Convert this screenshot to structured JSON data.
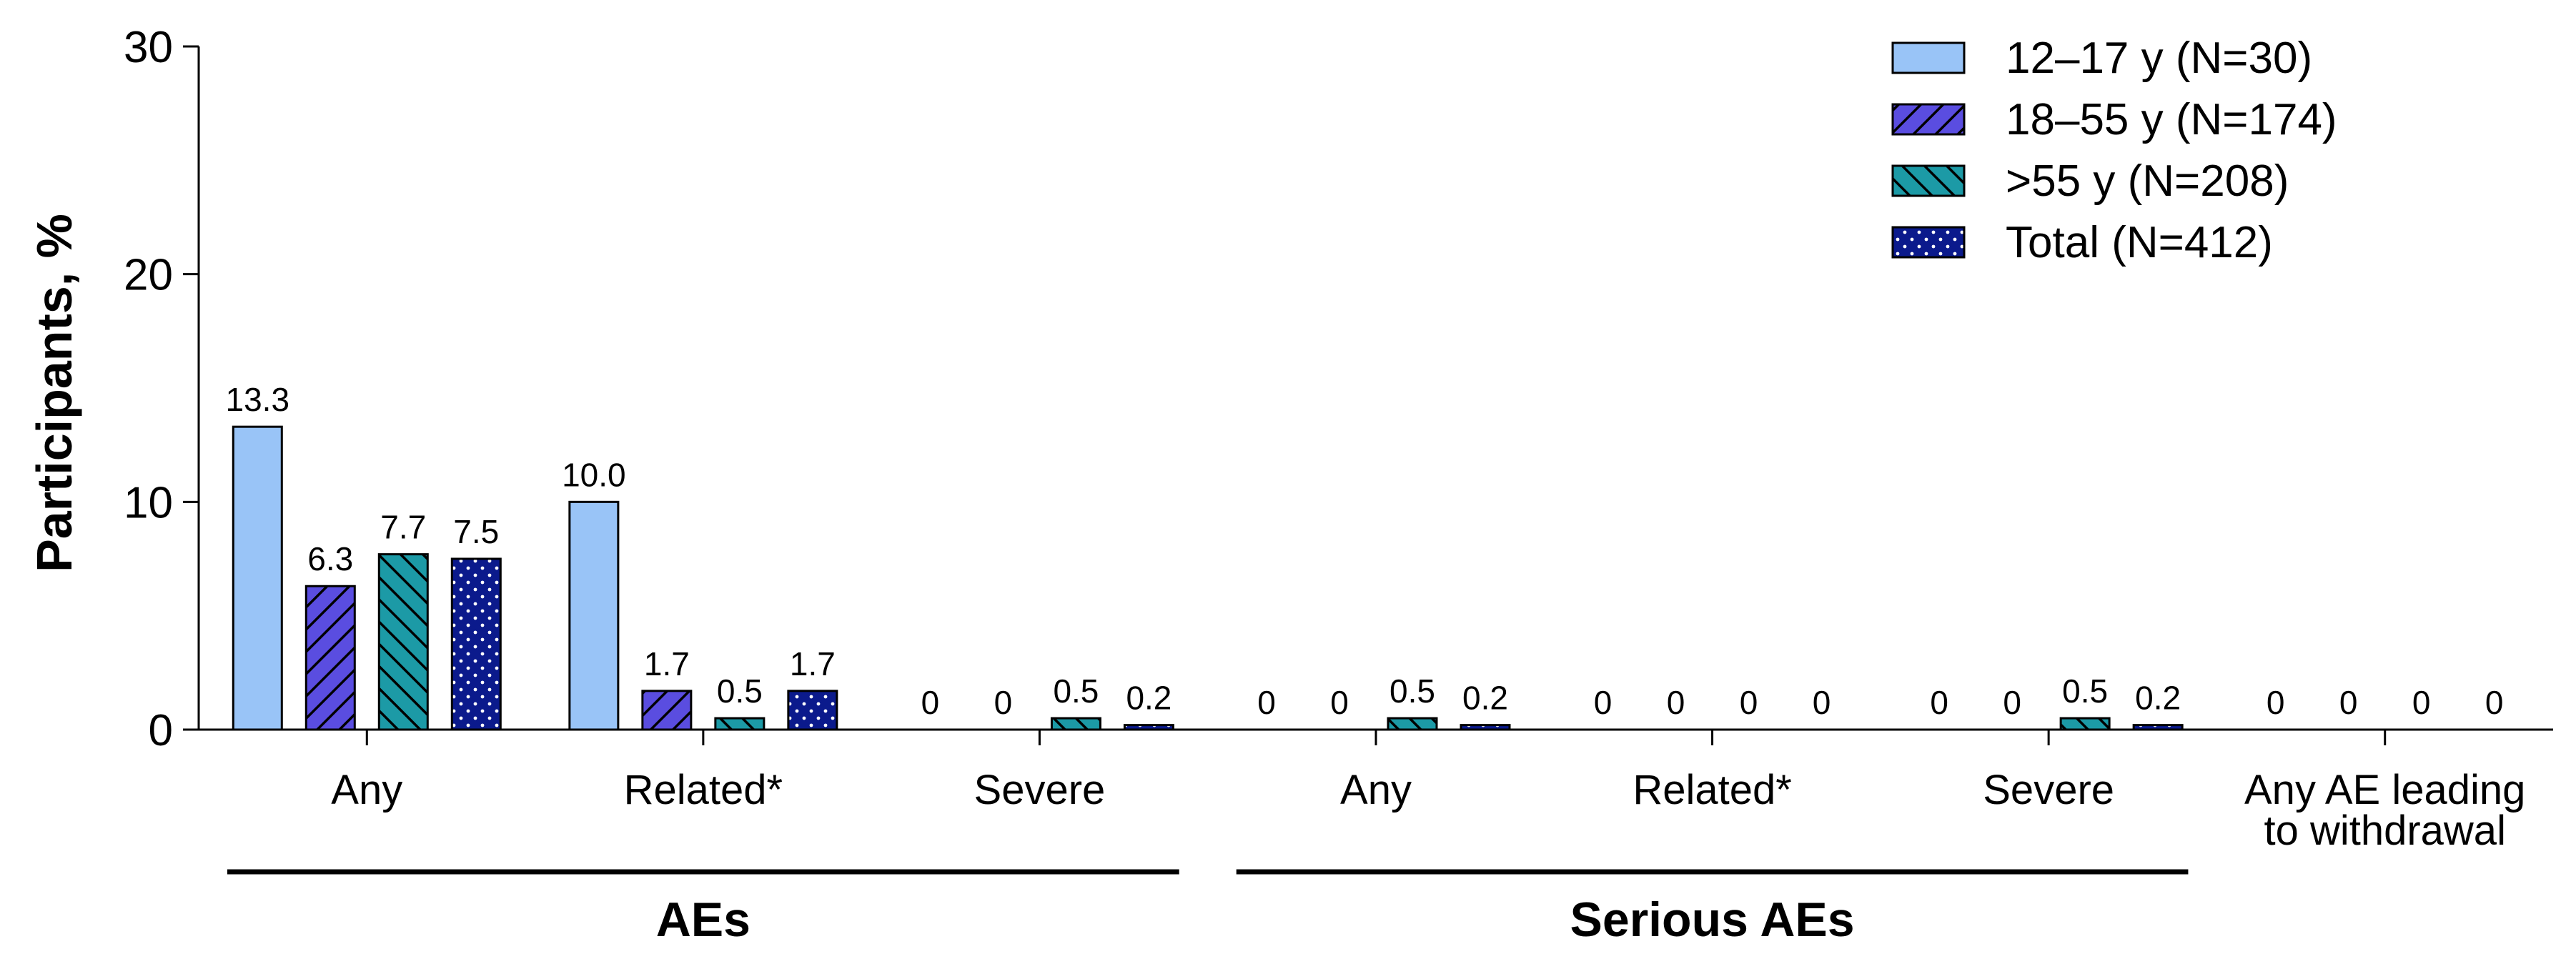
{
  "chart_data": {
    "type": "bar",
    "ylabel": "Participants, %",
    "ylim": [
      0,
      30
    ],
    "yticks": [
      0,
      10,
      20,
      30
    ],
    "categories": [
      "Any",
      "Related*",
      "Severe",
      "Any",
      "Related*",
      "Severe",
      "Any AE leading to withdrawal"
    ],
    "category_lines": [
      [
        "Any"
      ],
      [
        "Related*"
      ],
      [
        "Severe"
      ],
      [
        "Any"
      ],
      [
        "Related*"
      ],
      [
        "Severe"
      ],
      [
        "Any AE leading",
        "to withdrawal"
      ]
    ],
    "groups": [
      {
        "label": "AEs",
        "categories": [
          0,
          1,
          2
        ]
      },
      {
        "label": "Serious AEs",
        "categories": [
          3,
          4,
          5
        ]
      }
    ],
    "series": [
      {
        "name": "12–17 y (N=30)",
        "color": "#99c4f7",
        "pattern": "solid",
        "values": [
          13.3,
          10.0,
          0,
          0,
          0,
          0,
          0
        ],
        "labels": [
          "13.3",
          "10.0",
          "0",
          "0",
          "0",
          "0",
          "0"
        ]
      },
      {
        "name": "18–55 y (N=174)",
        "color": "#5a4de0",
        "pattern": "diagonal-forward",
        "values": [
          6.3,
          1.7,
          0,
          0,
          0,
          0,
          0
        ],
        "labels": [
          "6.3",
          "1.7",
          "0",
          "0",
          "0",
          "0",
          "0"
        ]
      },
      {
        "name": ">55 y (N=208)",
        "color": "#1c9aa6",
        "pattern": "diagonal-back",
        "values": [
          7.7,
          0.5,
          0.5,
          0.5,
          0,
          0.5,
          0
        ],
        "labels": [
          "7.7",
          "0.5",
          "0.5",
          "0.5",
          "0",
          "0.5",
          "0"
        ]
      },
      {
        "name": "Total (N=412)",
        "color": "#0b1a8c",
        "pattern": "dots",
        "values": [
          7.5,
          1.7,
          0.2,
          0.2,
          0,
          0.2,
          0
        ],
        "labels": [
          "7.5",
          "1.7",
          "0.2",
          "0.2",
          "0",
          "0.2",
          "0"
        ]
      }
    ],
    "legend_position": "top-right",
    "grid": false
  }
}
